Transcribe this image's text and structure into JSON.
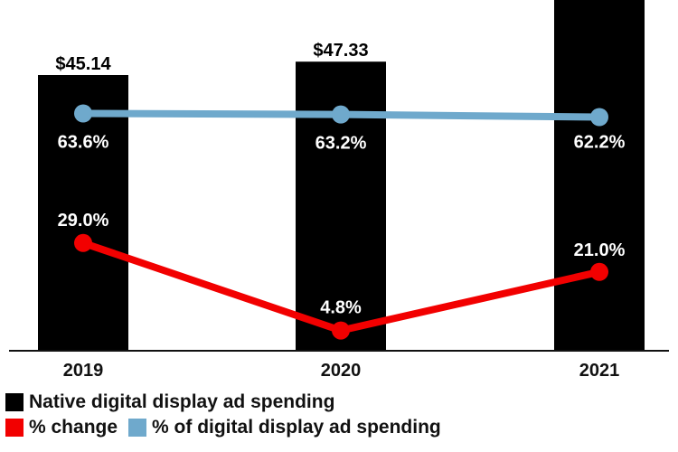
{
  "chart_data": {
    "type": "bar",
    "categories": [
      "2019",
      "2020",
      "2021"
    ],
    "series": [
      {
        "name": "Native digital display ad spending",
        "kind": "bar",
        "color": "#000000",
        "values": [
          45.14,
          47.33,
          null
        ],
        "labels": [
          "$45.14",
          "$47.33",
          ""
        ]
      },
      {
        "name": "% change",
        "kind": "line",
        "color": "#f20000",
        "values": [
          29.0,
          4.8,
          21.0
        ],
        "labels": [
          "29.0%",
          "4.8%",
          "21.0%"
        ]
      },
      {
        "name": "% of digital display ad spending",
        "kind": "line",
        "color": "#6fa9cc",
        "values": [
          63.6,
          63.2,
          62.2
        ],
        "labels": [
          "63.6%",
          "63.2%",
          "62.2%"
        ]
      }
    ],
    "legend_position": "bottom-left",
    "grid": false
  },
  "legend": {
    "items": [
      {
        "label": "Native digital display ad spending",
        "color": "#000000"
      },
      {
        "label": "% change",
        "color": "#f20000"
      },
      {
        "label": "% of digital display ad spending",
        "color": "#6fa9cc"
      }
    ]
  }
}
